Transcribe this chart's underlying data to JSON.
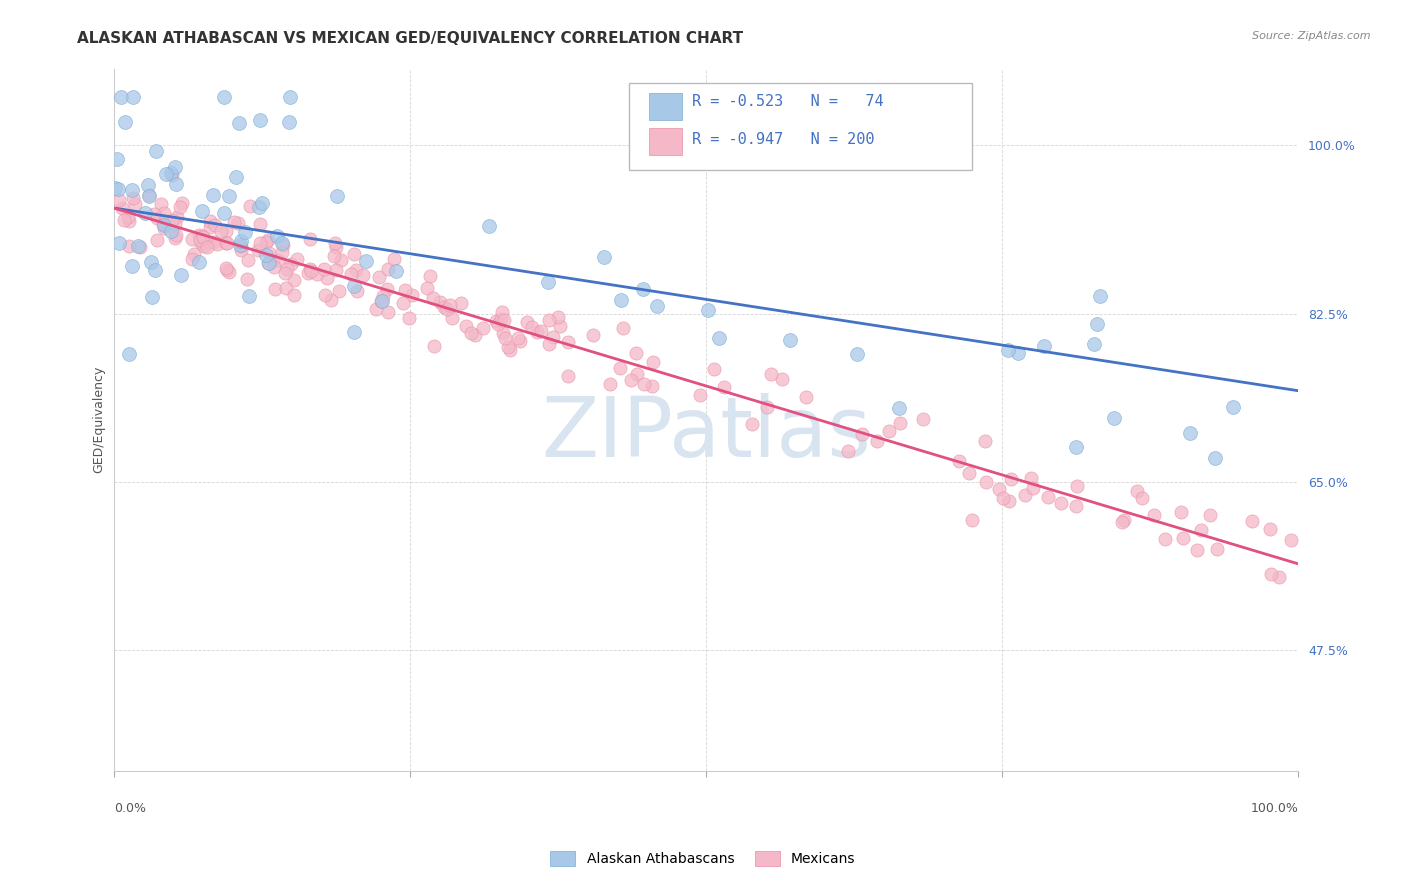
{
  "title": "ALASKAN ATHABASCAN VS MEXICAN GED/EQUIVALENCY CORRELATION CHART",
  "source": "Source: ZipAtlas.com",
  "ylabel": "GED/Equivalency",
  "ytick_labels": [
    "100.0%",
    "82.5%",
    "65.0%",
    "47.5%"
  ],
  "ytick_values": [
    1.0,
    0.825,
    0.65,
    0.475
  ],
  "legend_blue_label": "Alaskan Athabascans",
  "legend_pink_label": "Mexicans",
  "blue_line_start_x": 0.0,
  "blue_line_start_y": 0.935,
  "blue_line_end_x": 1.0,
  "blue_line_end_y": 0.745,
  "pink_line_start_x": 0.0,
  "pink_line_start_y": 0.935,
  "pink_line_end_x": 1.0,
  "pink_line_end_y": 0.565,
  "blue_color": "#a8c8e8",
  "pink_color": "#f4b8c8",
  "blue_dot_edge": "#7aaBd4",
  "pink_dot_edge": "#e890a8",
  "blue_line_color": "#4472c4",
  "pink_line_color": "#e05080",
  "background_color": "#ffffff",
  "grid_color": "#cccccc",
  "watermark_color": "#d8e4f0",
  "title_color": "#333333",
  "source_color": "#888888",
  "ytick_color": "#4472c4",
  "xlim": [
    0.0,
    1.0
  ],
  "ylim": [
    0.35,
    1.08
  ],
  "title_fontsize": 11,
  "source_fontsize": 8,
  "axis_label_fontsize": 9,
  "ytick_fontsize": 9,
  "legend_fontsize": 10,
  "legend_stat_fontsize": 11,
  "watermark_fontsize": 60
}
